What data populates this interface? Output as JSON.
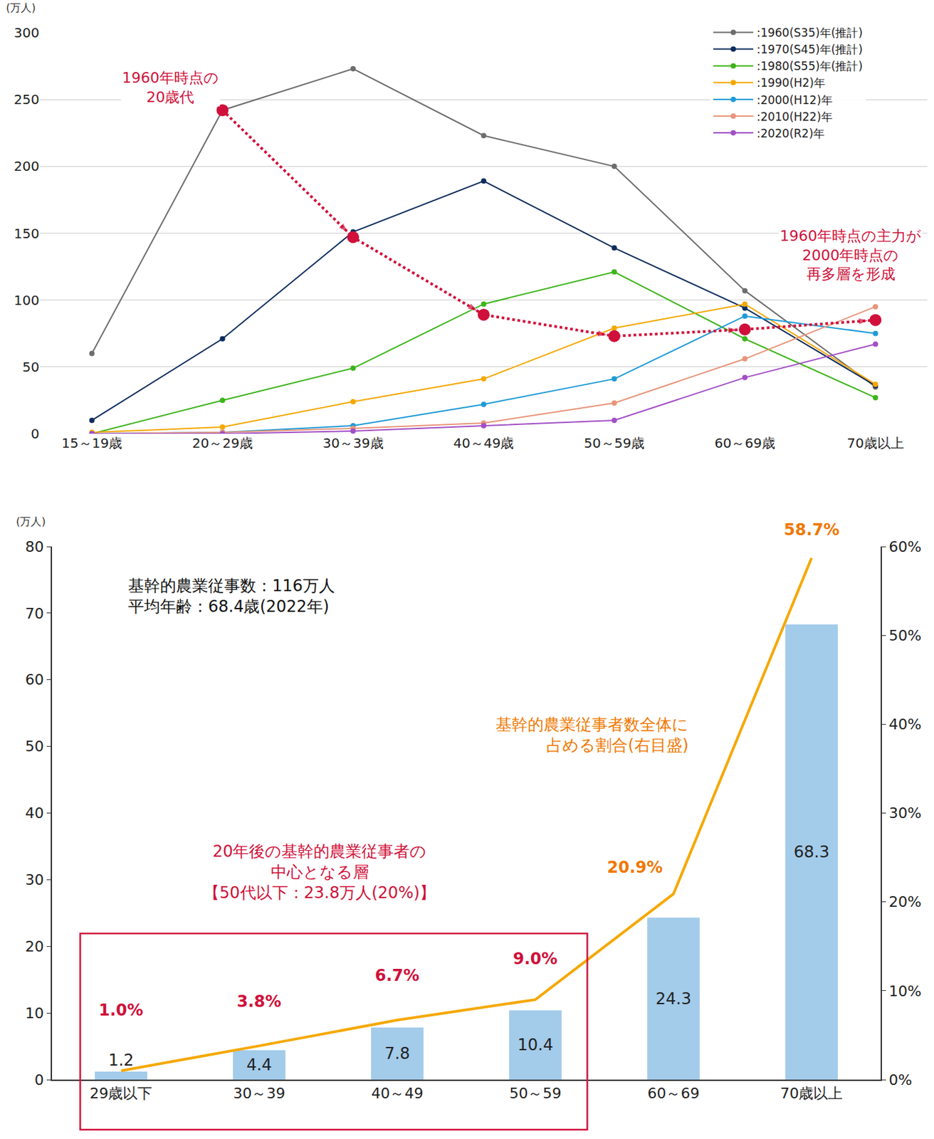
{
  "chart_data": [
    {
      "type": "line",
      "ylabel": "(万人)",
      "categories": [
        "15～19歳",
        "20～29歳",
        "30～39歳",
        "40～49歳",
        "50～59歳",
        "60～69歳",
        "70歳以上"
      ],
      "ylim": [
        0,
        300
      ],
      "yticks": [
        0,
        50,
        100,
        150,
        200,
        250,
        300
      ],
      "grid": true,
      "legend": "top right",
      "marker": "circle",
      "series": [
        {
          "name": ":1960(S35)年(推計)",
          "color": "#6d6d6d",
          "values": [
            60,
            242,
            273,
            223,
            200,
            107,
            35
          ]
        },
        {
          "name": ":1970(S45)年(推計)",
          "color": "#0d2d5e",
          "values": [
            10,
            71,
            151,
            189,
            139,
            94,
            36
          ]
        },
        {
          "name": ":1980(S55)年(推計)",
          "color": "#3db51a",
          "values": [
            0,
            25,
            49,
            97,
            121,
            71,
            27
          ]
        },
        {
          "name": ":1990(H2)年",
          "color": "#f5a800",
          "values": [
            1,
            5,
            24,
            41,
            79,
            97,
            37
          ]
        },
        {
          "name": ":2000(H12)年",
          "color": "#1e9bd7",
          "values": [
            0,
            1,
            6,
            22,
            41,
            88,
            75
          ]
        },
        {
          "name": ":2010(H22)年",
          "color": "#e8957a",
          "values": [
            0,
            1,
            4,
            8,
            23,
            56,
            95
          ]
        },
        {
          "name": ":2020(R2)年",
          "color": "#a24fc6",
          "values": [
            0,
            0,
            2,
            6,
            10,
            42,
            67
          ]
        },
        {
          "color": "#d0103a",
          "line_style": "dotted",
          "values": [
            null,
            242,
            147,
            89,
            73,
            78,
            85
          ]
        }
      ],
      "annotations": [
        {
          "text": "1960年時点の\n20歳代",
          "color": "#d0103a"
        },
        {
          "text": "1960年時点の主力が\n2000年時点の\n再多層を形成",
          "color": "#d0103a"
        }
      ]
    },
    {
      "type": "bar",
      "ylabel": "(万人)",
      "categories": [
        "29歳以下",
        "30～39",
        "40～49",
        "50～59",
        "60～69",
        "70歳以上"
      ],
      "ylim": [
        0,
        80
      ],
      "yticks": [
        0,
        10,
        20,
        30,
        40,
        50,
        60,
        70,
        80
      ],
      "y2lim": [
        0,
        60
      ],
      "y2ticks": [
        {
          "value": 0,
          "label": "0%"
        },
        {
          "value": 10,
          "label": "10%"
        },
        {
          "value": 20,
          "label": "20%"
        },
        {
          "value": 30,
          "label": "30%"
        },
        {
          "value": 40,
          "label": "40%"
        },
        {
          "value": 50,
          "label": "50%"
        },
        {
          "value": 60,
          "label": "60%"
        }
      ],
      "grid": false,
      "data_labels": true,
      "series": [
        {
          "type": "bar",
          "color": "#a3cbea",
          "values": [
            1.2,
            4.4,
            7.8,
            10.4,
            24.3,
            68.3
          ]
        },
        {
          "type": "line",
          "axis": "y2",
          "color": "#f5a800",
          "values": [
            1.0,
            3.8,
            6.7,
            9.0,
            20.9,
            58.7
          ],
          "value_labels": [
            "1.0%",
            "3.8%",
            "6.7%",
            "9.0%",
            "20.9%",
            "58.7%"
          ],
          "colors": [
            "#d0103a",
            "#d0103a",
            "#d0103a",
            "#d0103a",
            "#f07800",
            "#f07800"
          ]
        }
      ],
      "annotations": [
        {
          "text": "基幹的農業従事数：116万人\n平均年齢：68.4歳(2022年)",
          "color": "#111111"
        },
        {
          "text": "基幹的農業従事者数全体に\n占める割合(右目盛)",
          "color": "#f07800"
        },
        {
          "text": "20年後の基幹的農業従事者の\n中心となる層\n【50代以下：23.8万人(20%)】",
          "color": "#d0103a"
        }
      ]
    }
  ]
}
